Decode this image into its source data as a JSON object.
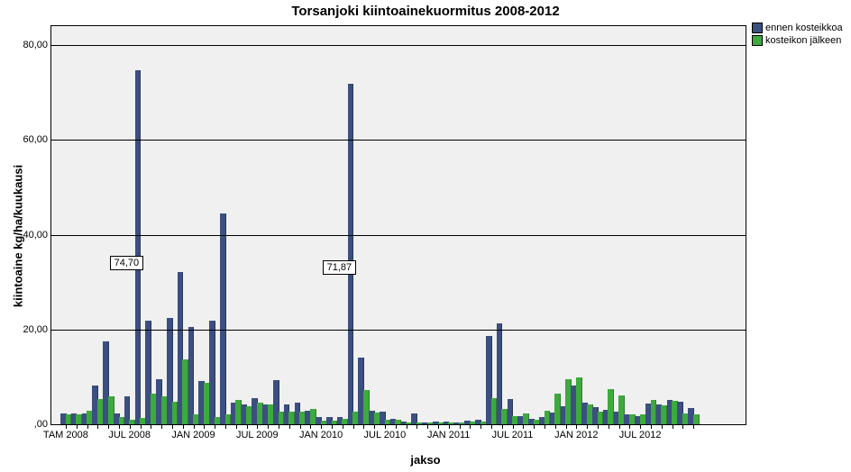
{
  "title": "Torsanjoki kiintoainekuormitus 2008-2012",
  "legend": {
    "items": [
      {
        "label": "ennen kosteikkoa",
        "color": "#3b4f81"
      },
      {
        "label": "kosteikon jälkeen",
        "color": "#3daa3d"
      }
    ]
  },
  "chart": {
    "type": "bar",
    "ylabel": "kiintoaine kg/ha/kuukausi",
    "xlabel": "jakso",
    "ylim": [
      0,
      84
    ],
    "yticks": [
      0,
      20,
      40,
      60,
      80
    ],
    "ytick_labels": [
      ",00",
      "20,00",
      "40,00",
      "60,00",
      "80,00"
    ],
    "grid_color": "#000000",
    "background_color": "#f0f0f0",
    "plot_border": "#000000",
    "bar_colors": [
      "#3b4f81",
      "#3daa3d"
    ],
    "bar_group_width": 11.8,
    "left_pad": 10,
    "font_size_ticks": 11,
    "font_size_labels": 13,
    "annotations": [
      {
        "text": "74,70",
        "x_index": 7,
        "y": 34
      },
      {
        "text": "71,87",
        "x_index": 27,
        "y": 33
      }
    ],
    "x_tick_labels": [
      {
        "at_index": 0,
        "label": "TAM 2008"
      },
      {
        "at_index": 6,
        "label": "JUL 2008"
      },
      {
        "at_index": 12,
        "label": "JAN 2009"
      },
      {
        "at_index": 18,
        "label": "JUL 2009"
      },
      {
        "at_index": 24,
        "label": "JAN 2010"
      },
      {
        "at_index": 30,
        "label": "JUL 2010"
      },
      {
        "at_index": 36,
        "label": "JAN 2011"
      },
      {
        "at_index": 42,
        "label": "JUL 2011"
      },
      {
        "at_index": 48,
        "label": "JAN 2012"
      },
      {
        "at_index": 54,
        "label": "JUL 2012"
      }
    ],
    "series_a_name": "ennen kosteikkoa",
    "series_b_name": "kosteikon jälkeen",
    "series_a": [
      2.2,
      2.2,
      2.2,
      8.2,
      17.4,
      2.2,
      5.8,
      74.7,
      21.8,
      9.6,
      22.5,
      32.1,
      20.6,
      9.1,
      21.8,
      44.4,
      4.5,
      4.2,
      5.6,
      4.2,
      9.4,
      4.2,
      4.6,
      2.8,
      1.6,
      1.6,
      1.6,
      71.87,
      14.0,
      2.8,
      2.6,
      1.2,
      0.6,
      2.2,
      0.4,
      0.6,
      0.6,
      0.4,
      0.8,
      1.0,
      18.6,
      21.2,
      5.4,
      1.8,
      1.2,
      1.6,
      2.4,
      3.8,
      8.2,
      4.6,
      3.6,
      3.0,
      2.6,
      2.0,
      1.8,
      4.4,
      4.2,
      5.2,
      4.8,
      3.4
    ],
    "series_b": [
      2.0,
      2.0,
      2.8,
      5.4,
      5.8,
      1.6,
      1.0,
      1.4,
      6.4,
      5.8,
      4.8,
      13.6,
      2.0,
      8.8,
      1.6,
      2.0,
      5.2,
      3.8,
      4.6,
      4.2,
      2.6,
      2.6,
      2.6,
      3.2,
      0.8,
      0.8,
      1.2,
      2.6,
      7.2,
      2.4,
      1.0,
      1.0,
      0.4,
      0.4,
      0.4,
      0.4,
      0.4,
      0.4,
      0.6,
      0.6,
      5.6,
      3.2,
      1.8,
      2.2,
      1.0,
      2.8,
      6.4,
      9.6,
      9.8,
      4.2,
      2.6,
      7.4,
      6.0,
      2.0,
      2.0,
      5.2,
      4.0,
      5.0,
      2.2,
      2.0
    ]
  }
}
